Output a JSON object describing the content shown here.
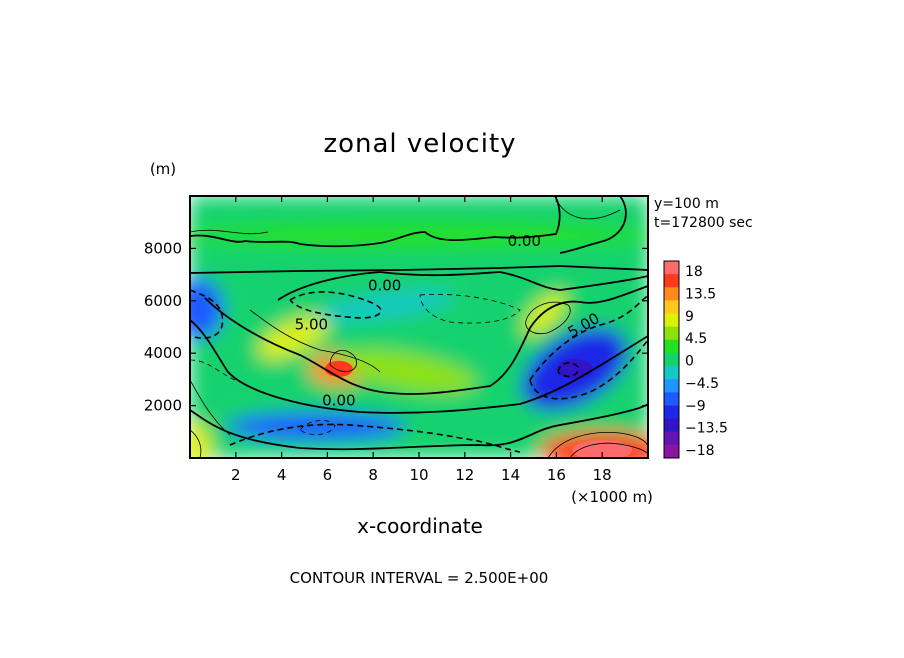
{
  "chart_data": {
    "type": "heatmap",
    "title": "zonal velocity",
    "xlabel": "x-coordinate",
    "x_unit_label": "(×1000 m)",
    "y_unit_label": "(m)",
    "x_ticks": [
      2,
      4,
      6,
      8,
      10,
      12,
      14,
      16,
      18
    ],
    "y_ticks": [
      2000,
      4000,
      6000,
      8000
    ],
    "xlim": [
      0,
      20
    ],
    "ylim": [
      0,
      10000
    ],
    "info_lines": [
      "y=100 m",
      "t=172800 sec"
    ],
    "footer": "CONTOUR INTERVAL = 2.500E+00",
    "contour_interval": 2.5,
    "contour_labels": [
      {
        "text": "0.00",
        "x": 14.6,
        "y": 8100
      },
      {
        "text": "0.00",
        "x": 8.5,
        "y": 6400
      },
      {
        "text": "5.00",
        "x": 5.3,
        "y": 4900
      },
      {
        "text": "0.00",
        "x": 6.5,
        "y": 2000
      },
      {
        "text": "5.00",
        "x": 17.3,
        "y": 4900
      }
    ],
    "colorbar": {
      "labels": [
        "18",
        "13.5",
        "9",
        "4.5",
        "0",
        "−4.5",
        "−9",
        "−13.5",
        "−18"
      ],
      "values": [
        18,
        13.5,
        9,
        4.5,
        0,
        -4.5,
        -9,
        -13.5,
        -18
      ],
      "colors": [
        "#ff6a6a",
        "#ff3a1e",
        "#ff8c1a",
        "#ffc81e",
        "#dcf00a",
        "#8ee20a",
        "#22e022",
        "#14d26e",
        "#14c8c8",
        "#1e96ff",
        "#1e5aff",
        "#1e28e6",
        "#3214c8",
        "#6414b4",
        "#8c14a0"
      ]
    },
    "features": [
      {
        "name": "background",
        "x": 10,
        "y": 6000,
        "value": 0.5
      },
      {
        "name": "band-8000",
        "x": 10,
        "y": 8500,
        "value": 1.5
      },
      {
        "name": "jet-left",
        "x": 4.5,
        "y": 4600,
        "value": 6.5
      },
      {
        "name": "max-center",
        "x": 6.5,
        "y": 3400,
        "value": 12
      },
      {
        "name": "jet-middle",
        "x": 9.5,
        "y": 3300,
        "value": 5.5
      },
      {
        "name": "jet-right-upper",
        "x": 15.5,
        "y": 5500,
        "value": 7
      },
      {
        "name": "min-right",
        "x": 16.8,
        "y": 3400,
        "value": -9.5
      },
      {
        "name": "min-left",
        "x": 0.4,
        "y": 5700,
        "value": -7
      },
      {
        "name": "min-upper-mid",
        "x": 8.5,
        "y": 5800,
        "value": -3
      },
      {
        "name": "min-bottom",
        "x": 5.5,
        "y": 1200,
        "value": -6
      },
      {
        "name": "max-bottom-right",
        "x": 18,
        "y": 300,
        "value": 14
      },
      {
        "name": "max-bottom-left",
        "x": 0.3,
        "y": 500,
        "value": 8
      }
    ]
  }
}
